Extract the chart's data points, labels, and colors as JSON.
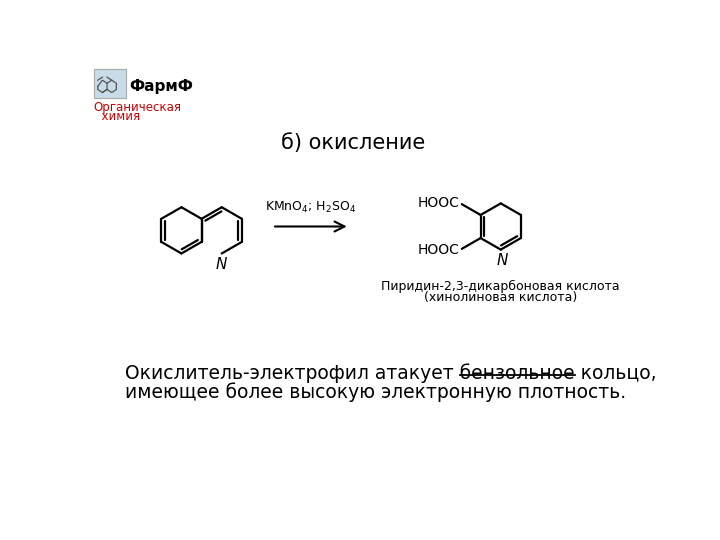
{
  "title": "б) окисление",
  "header_text": "ФармФ",
  "subheader_line1": "Органическая",
  "subheader_line2": "  химия",
  "reagent_text_line1": "KMnO",
  "reagent_text_line2": "; H",
  "reagent_sub1": "4",
  "reagent_sub2": "2",
  "reagent_text_so4": "SO",
  "reagent_sub3": "4",
  "product_name_line1": "Пиридин-2,3-дикарбоновая кислота",
  "product_name_line2": "(хинолиновая кислота)",
  "bottom_text_part1": "Окислитель-электрофил атакует ",
  "bottom_text_underline": "бензольное",
  "bottom_text_part2": " кольцо,",
  "bottom_text_line2": "имеющее более высокую электронную плотность.",
  "bg_color": "#ffffff",
  "text_color": "#000000",
  "header_color": "#000000",
  "subheader_color": "#cc0000"
}
